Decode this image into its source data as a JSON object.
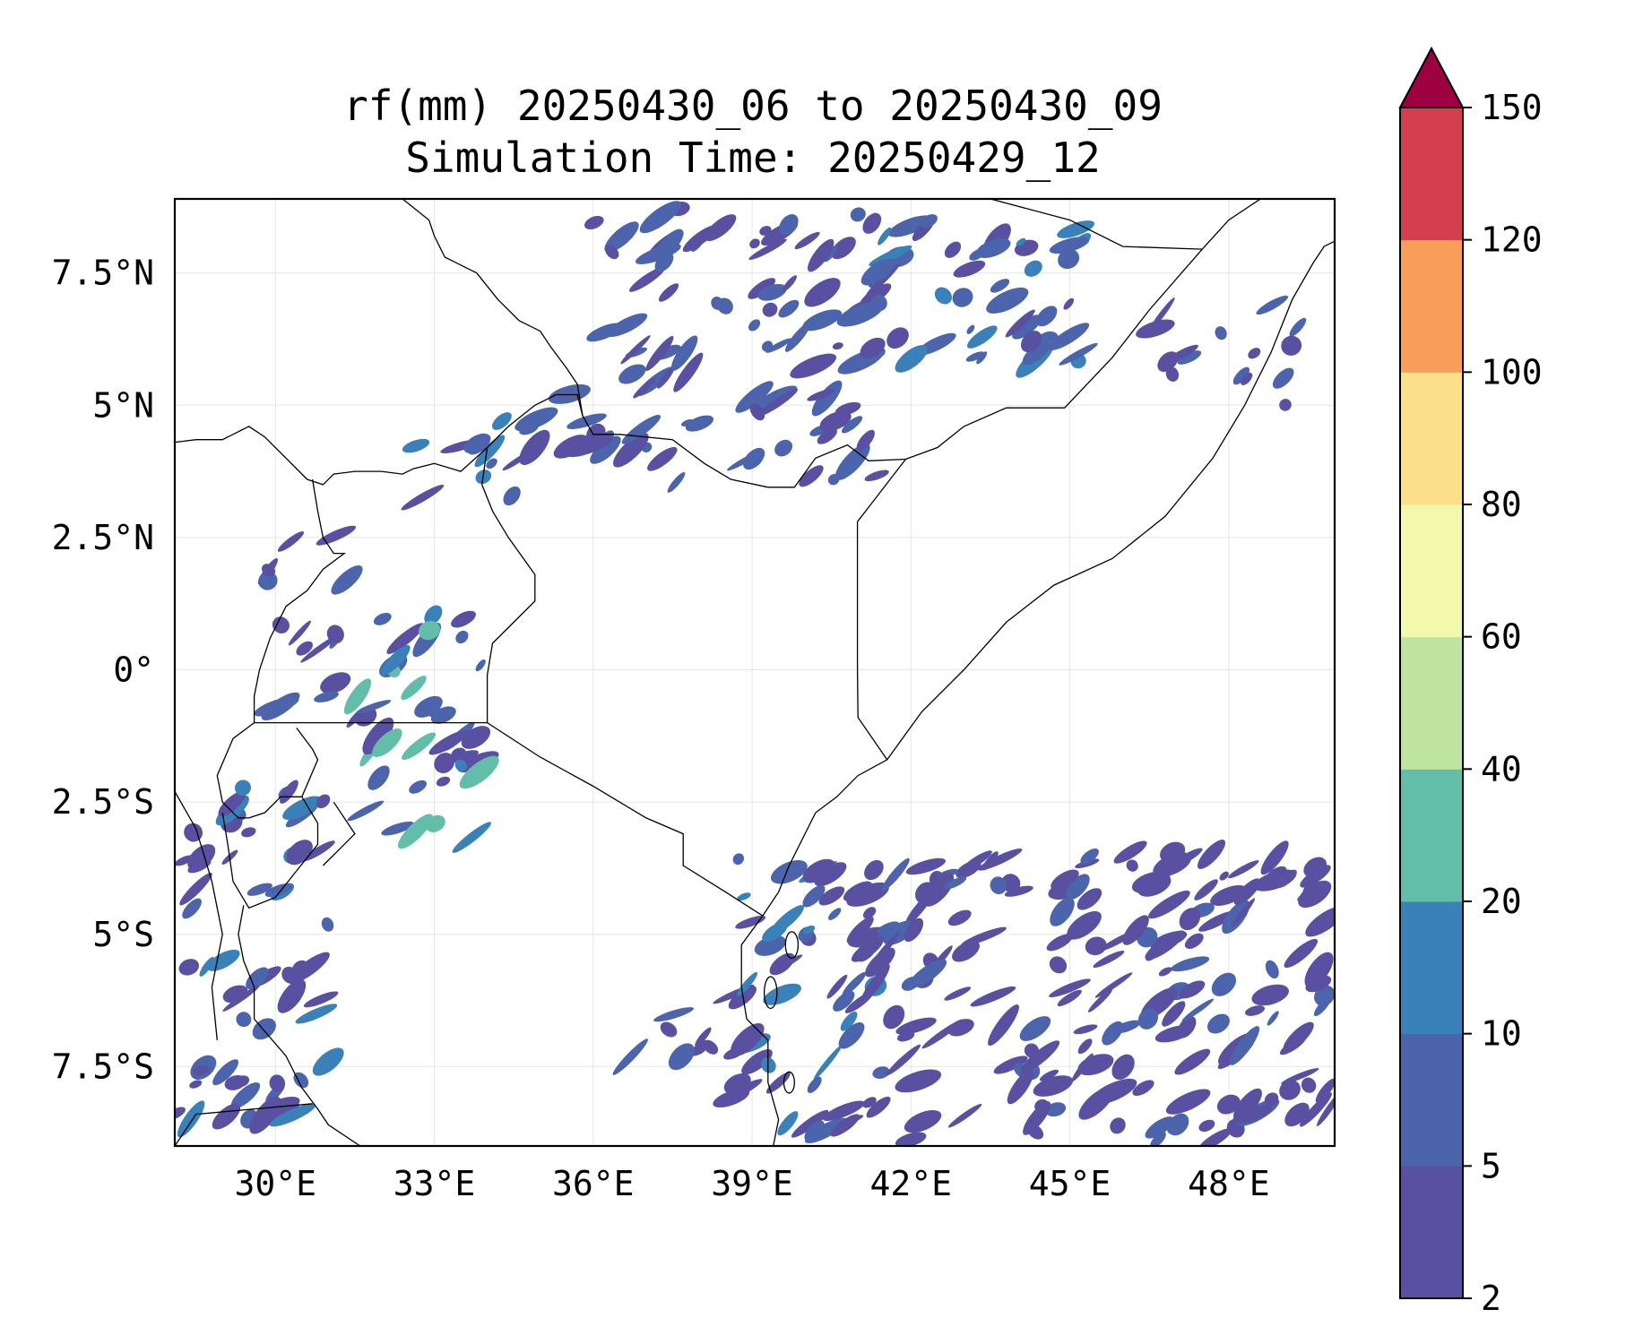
{
  "title": {
    "line1": "rf(mm) 20250430_06 to 20250430_09",
    "line2": "Simulation Time: 20250429_12"
  },
  "map": {
    "lon_range": [
      28.1,
      50.0
    ],
    "lat_range": [
      -9.0,
      8.9
    ],
    "gridlines": true,
    "x_ticks": [
      {
        "value": 30,
        "label": "30°E"
      },
      {
        "value": 33,
        "label": "33°E"
      },
      {
        "value": 36,
        "label": "36°E"
      },
      {
        "value": 39,
        "label": "39°E"
      },
      {
        "value": 42,
        "label": "42°E"
      },
      {
        "value": 45,
        "label": "45°E"
      },
      {
        "value": 48,
        "label": "48°E"
      }
    ],
    "y_ticks": [
      {
        "value": 7.5,
        "label": "7.5°N"
      },
      {
        "value": 5,
        "label": "5°N"
      },
      {
        "value": 2.5,
        "label": "2.5°N"
      },
      {
        "value": 0,
        "label": "0°"
      },
      {
        "value": -2.5,
        "label": "2.5°S"
      },
      {
        "value": -5,
        "label": "5°S"
      },
      {
        "value": -7.5,
        "label": "7.5°S"
      }
    ]
  },
  "colorbar": {
    "levels": [
      2,
      5,
      10,
      20,
      40,
      60,
      80,
      100,
      120,
      150
    ],
    "labels": [
      "2",
      "5",
      "10",
      "20",
      "40",
      "60",
      "80",
      "100",
      "120",
      "150"
    ],
    "colors": [
      "#5950a2",
      "#4b64ac",
      "#3a81b9",
      "#63bea9",
      "#bee4a0",
      "#f2f9ac",
      "#fbdf8b",
      "#f99d5a",
      "#d43f4f"
    ],
    "extend_color": "#9e0142",
    "extend": "max"
  }
}
